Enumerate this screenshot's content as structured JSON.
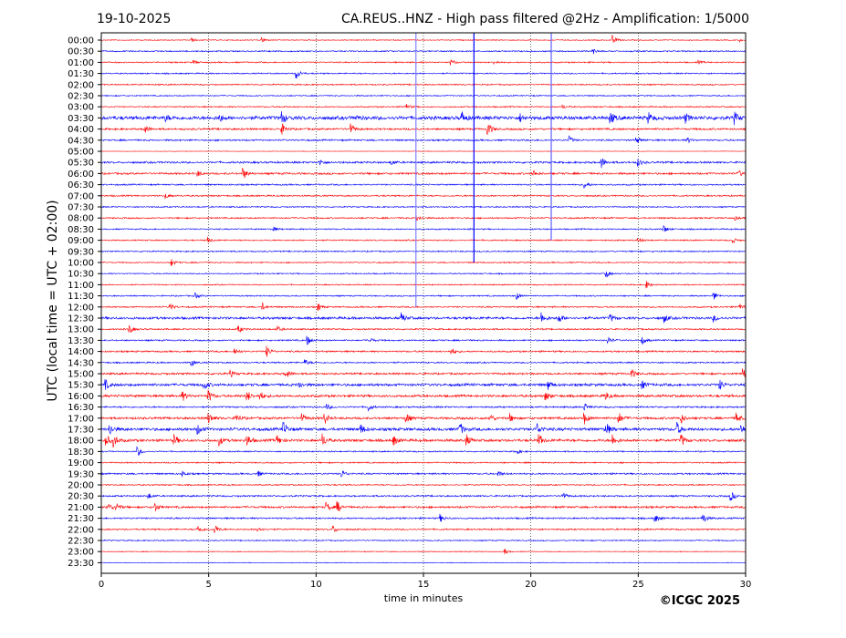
{
  "chart_data": {
    "type": "line",
    "date": "19-10-2025",
    "title": "CA.REUS..HNZ - High pass filtered @2Hz - Amplification: 1/5000",
    "xlabel": "time in minutes",
    "ylabel": "UTC (local time = UTC + 02:00)",
    "xlim": [
      0,
      30
    ],
    "xticks": [
      0,
      5,
      10,
      15,
      20,
      25,
      30
    ],
    "grid_x": [
      5,
      10,
      15,
      20,
      25
    ],
    "copyright": "©ICGC 2025",
    "series_colors": [
      "#ff0000",
      "#0000ff"
    ],
    "rows": [
      "00:00",
      "00:30",
      "01:00",
      "01:30",
      "02:00",
      "02:30",
      "03:00",
      "03:30",
      "04:00",
      "04:30",
      "05:00",
      "05:30",
      "06:00",
      "06:30",
      "07:00",
      "07:30",
      "08:00",
      "08:30",
      "09:00",
      "09:30",
      "10:00",
      "10:30",
      "11:00",
      "11:30",
      "12:00",
      "12:30",
      "13:00",
      "13:30",
      "14:00",
      "14:30",
      "15:00",
      "15:30",
      "16:00",
      "16:30",
      "17:00",
      "17:30",
      "18:00",
      "18:30",
      "19:00",
      "19:30",
      "20:00",
      "20:30",
      "21:00",
      "21:30",
      "22:00",
      "22:30",
      "23:00",
      "23:30"
    ],
    "noise_level": [
      0.6,
      0.8,
      0.8,
      0.8,
      0.8,
      0.7,
      0.8,
      2.2,
      1.2,
      1.0,
      0.3,
      1.2,
      1.2,
      0.9,
      0.9,
      0.8,
      0.9,
      0.8,
      0.8,
      0.8,
      0.7,
      0.7,
      0.7,
      0.8,
      0.9,
      1.5,
      0.9,
      0.9,
      1.0,
      0.9,
      1.2,
      1.6,
      1.5,
      1.0,
      1.4,
      1.8,
      1.6,
      0.8,
      0.8,
      1.0,
      0.8,
      1.0,
      1.2,
      1.0,
      0.9,
      0.7,
      0.5,
      0.4
    ],
    "events": {
      "00:00": [
        [
          4.2,
          2
        ],
        [
          7.5,
          2.5
        ],
        [
          23.8,
          5
        ],
        [
          29.7,
          2
        ]
      ],
      "00:30": [
        [
          22.9,
          3
        ]
      ],
      "01:00": [
        [
          4.3,
          2
        ],
        [
          16.3,
          3
        ],
        [
          18.3,
          2
        ],
        [
          27.8,
          2
        ]
      ],
      "01:30": [
        [
          9.1,
          6
        ]
      ],
      "03:00": [
        [
          14.2,
          3
        ],
        [
          21.5,
          2
        ]
      ],
      "03:30": [
        [
          3,
          3
        ],
        [
          5.5,
          4
        ],
        [
          8.4,
          7
        ],
        [
          11.8,
          3
        ],
        [
          16.8,
          6
        ],
        [
          19.5,
          4
        ],
        [
          23.7,
          7
        ],
        [
          25.5,
          5
        ],
        [
          27.2,
          5
        ],
        [
          29.5,
          6
        ]
      ],
      "04:00": [
        [
          2,
          5
        ],
        [
          8.4,
          6
        ],
        [
          11.6,
          6
        ],
        [
          18,
          8
        ]
      ],
      "04:30": [
        [
          21.8,
          4
        ],
        [
          24.9,
          4
        ],
        [
          27.3,
          3
        ]
      ],
      "05:30": [
        [
          10.2,
          3
        ],
        [
          13.5,
          3
        ],
        [
          23.3,
          6
        ],
        [
          25,
          4
        ]
      ],
      "06:00": [
        [
          4.5,
          3
        ],
        [
          6.6,
          6
        ],
        [
          20.1,
          4
        ],
        [
          29.7,
          3
        ]
      ],
      "06:30": [
        [
          22.5,
          4
        ]
      ],
      "07:00": [
        [
          3,
          3
        ]
      ],
      "08:00": [
        [
          14.7,
          3
        ],
        [
          29.5,
          2
        ]
      ],
      "08:30": [
        [
          8,
          3
        ],
        [
          26.2,
          4
        ]
      ],
      "09:00": [
        [
          5,
          3
        ],
        [
          25,
          3
        ],
        [
          29.4,
          3
        ]
      ],
      "10:00": [
        [
          3.3,
          4
        ]
      ],
      "10:30": [
        [
          23.5,
          5
        ]
      ],
      "11:00": [
        [
          25.4,
          4
        ]
      ],
      "11:30": [
        [
          4.4,
          3
        ],
        [
          19.3,
          5
        ],
        [
          28.5,
          5
        ]
      ],
      "12:00": [
        [
          3.2,
          4
        ],
        [
          7.5,
          4
        ],
        [
          10.1,
          4
        ],
        [
          29.7,
          4
        ]
      ],
      "12:30": [
        [
          14,
          5
        ],
        [
          20.5,
          6
        ],
        [
          21.3,
          5
        ],
        [
          23.7,
          4
        ],
        [
          26.2,
          5
        ],
        [
          28.5,
          4
        ]
      ],
      "13:00": [
        [
          1.3,
          5
        ],
        [
          6.4,
          4
        ],
        [
          8.2,
          3
        ]
      ],
      "13:30": [
        [
          9.6,
          5
        ],
        [
          12.5,
          3
        ],
        [
          23.6,
          4
        ],
        [
          25.2,
          4
        ]
      ],
      "14:00": [
        [
          6.2,
          4
        ],
        [
          7.7,
          6
        ],
        [
          16.3,
          4
        ]
      ],
      "14:30": [
        [
          4.2,
          4
        ],
        [
          9.5,
          3
        ]
      ],
      "15:00": [
        [
          6,
          4
        ],
        [
          8.6,
          5
        ],
        [
          24.7,
          5
        ],
        [
          29.9,
          5
        ]
      ],
      "15:30": [
        [
          0.2,
          5
        ],
        [
          4.8,
          5
        ],
        [
          9.2,
          4
        ],
        [
          20.8,
          5
        ],
        [
          25.2,
          4
        ],
        [
          28.8,
          5
        ]
      ],
      "16:00": [
        [
          3.8,
          5
        ],
        [
          5,
          6
        ],
        [
          6.8,
          6
        ],
        [
          7.4,
          5
        ],
        [
          20.7,
          5
        ],
        [
          23.5,
          4
        ]
      ],
      "16:30": [
        [
          10.5,
          3
        ],
        [
          12.4,
          5
        ],
        [
          22.5,
          4
        ]
      ],
      "17:00": [
        [
          5,
          6
        ],
        [
          6.3,
          5
        ],
        [
          9.3,
          6
        ],
        [
          10.4,
          6
        ],
        [
          14.2,
          6
        ],
        [
          18.1,
          5
        ],
        [
          19,
          5
        ],
        [
          22.5,
          6
        ],
        [
          24.1,
          6
        ],
        [
          27,
          5
        ],
        [
          29.6,
          5
        ]
      ],
      "17:30": [
        [
          0.4,
          6
        ],
        [
          4.5,
          5
        ],
        [
          8.5,
          7
        ],
        [
          12.1,
          5
        ],
        [
          16.7,
          7
        ],
        [
          20.3,
          6
        ],
        [
          23.5,
          8
        ],
        [
          26.8,
          7
        ],
        [
          29.8,
          5
        ]
      ],
      "18:00": [
        [
          0.2,
          7
        ],
        [
          0.6,
          6
        ],
        [
          3.4,
          6
        ],
        [
          5.5,
          5
        ],
        [
          6.8,
          6
        ],
        [
          8.2,
          5
        ],
        [
          10.3,
          7
        ],
        [
          13.6,
          6
        ],
        [
          17,
          6
        ],
        [
          20.4,
          6
        ],
        [
          23.8,
          6
        ],
        [
          27,
          7
        ]
      ],
      "18:30": [
        [
          1.7,
          5
        ],
        [
          19.3,
          4
        ]
      ],
      "19:30": [
        [
          3.8,
          3
        ],
        [
          7.3,
          3
        ],
        [
          11.2,
          4
        ],
        [
          18.5,
          3
        ]
      ],
      "20:30": [
        [
          2.2,
          3
        ],
        [
          21.5,
          4
        ],
        [
          29.3,
          6
        ]
      ],
      "21:00": [
        [
          0.3,
          5
        ],
        [
          0.7,
          5
        ],
        [
          2.5,
          5
        ],
        [
          10.5,
          5
        ],
        [
          11,
          6
        ]
      ],
      "21:30": [
        [
          15.8,
          4
        ],
        [
          25.8,
          4
        ],
        [
          28,
          6
        ]
      ],
      "22:00": [
        [
          4.5,
          5
        ],
        [
          5.3,
          5
        ],
        [
          7.3,
          4
        ],
        [
          10.8,
          4
        ]
      ],
      "23:00": [
        [
          18.8,
          3
        ]
      ]
    },
    "artifacts": [
      {
        "x": 14.65,
        "from": "00:00",
        "to": "12:00",
        "color": "#8080ff"
      },
      {
        "x": 17.35,
        "from": "00:00",
        "to": "10:00",
        "color": "#0000ff"
      },
      {
        "x": 20.95,
        "from": "00:00",
        "to": "09:00",
        "color": "#6060ff"
      }
    ]
  }
}
